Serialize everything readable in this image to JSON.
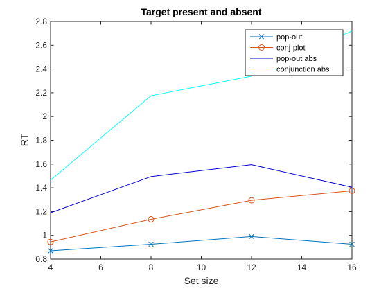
{
  "chart_data": {
    "type": "line",
    "title": "Target present and absent",
    "xlabel": "Set size",
    "ylabel": "RT",
    "x": [
      4,
      8,
      12,
      16
    ],
    "xlim": [
      4,
      16
    ],
    "ylim": [
      0.8,
      2.8
    ],
    "xticks": [
      "4",
      "6",
      "8",
      "10",
      "12",
      "14",
      "16"
    ],
    "yticks": [
      "0.8",
      "1",
      "1.2",
      "1.4",
      "1.6",
      "1.8",
      "2",
      "2.2",
      "2.4",
      "2.6",
      "2.8"
    ],
    "grid": false,
    "legend_position": "top-right",
    "series": [
      {
        "name": "pop-out",
        "values": [
          0.87,
          0.925,
          0.99,
          0.925
        ],
        "color": "#0072BD",
        "marker": "x"
      },
      {
        "name": "conj-plot",
        "values": [
          0.945,
          1.135,
          1.295,
          1.375
        ],
        "color": "#D95319",
        "marker": "o"
      },
      {
        "name": "pop-out abs",
        "values": [
          1.19,
          1.495,
          1.595,
          1.405
        ],
        "color": "#0000CC",
        "marker": "none"
      },
      {
        "name": "conjunction abs",
        "values": [
          1.465,
          2.175,
          2.34,
          2.72
        ],
        "color": "#00FFFF",
        "marker": "none"
      }
    ]
  }
}
